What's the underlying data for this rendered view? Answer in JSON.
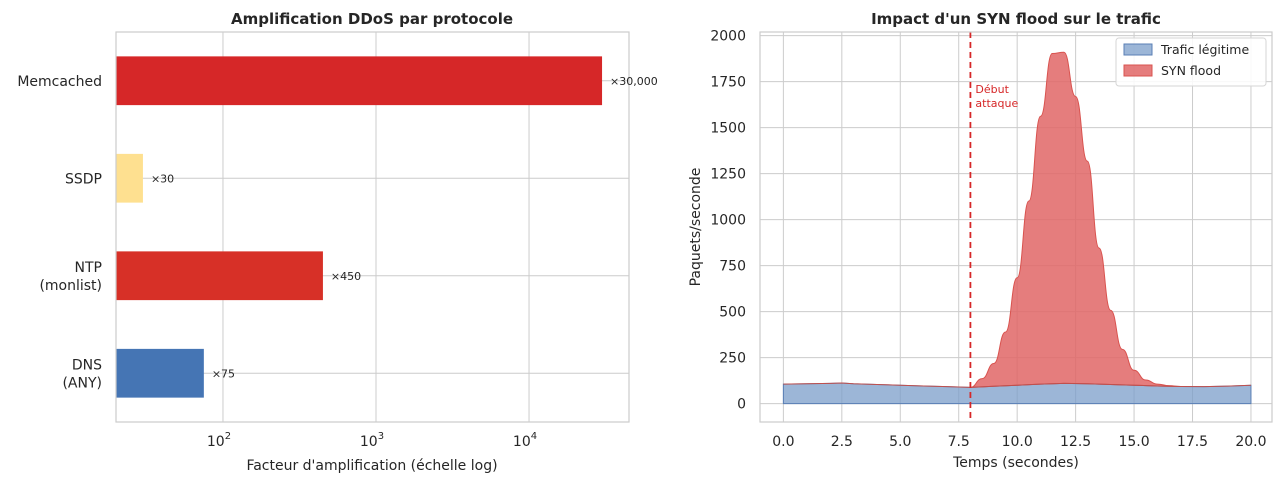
{
  "chart_data": [
    {
      "type": "bar",
      "orientation": "horizontal",
      "title": "Amplification DDoS par protocole",
      "xlabel": "Facteur d'amplification (échelle log)",
      "ylabel": "",
      "xscale": "log",
      "xlim": [
        20,
        45000
      ],
      "xticks": [
        {
          "base": "10",
          "exp": "2"
        },
        {
          "base": "10",
          "exp": "3"
        },
        {
          "base": "10",
          "exp": "4"
        }
      ],
      "grid": true,
      "categories": [
        "DNS|(ANY)",
        "NTP|(monlist)",
        "SSDP",
        "Memcached"
      ],
      "values": [
        75,
        450,
        30,
        30000
      ],
      "labels": [
        "×75",
        "×450",
        "×30",
        "×30,000"
      ],
      "colors": [
        "#4575b4",
        "#d73027",
        "#fee090",
        "#d62728"
      ]
    },
    {
      "type": "area",
      "title": "Impact d'un SYN flood sur le trafic",
      "xlabel": "Temps (secondes)",
      "ylabel": "Paquets/seconde",
      "xlim": [
        -1,
        20.9
      ],
      "ylim": [
        -100,
        2020
      ],
      "xticks": [
        "0.0",
        "2.5",
        "5.0",
        "7.5",
        "10.0",
        "12.5",
        "15.0",
        "17.5",
        "20.0"
      ],
      "yticks": [
        "0",
        "250",
        "500",
        "750",
        "1000",
        "1250",
        "1500",
        "1750",
        "2000"
      ],
      "grid": true,
      "legend_position": "top-right",
      "series": [
        {
          "name": "Trafic légitime",
          "color": "#7b9dc9",
          "x": [
            0,
            1,
            2,
            2.5,
            3,
            4,
            5,
            6,
            7,
            8,
            9,
            10,
            11,
            12,
            13,
            14,
            15,
            16,
            17,
            18,
            19,
            20
          ],
          "y": [
            106,
            108,
            110,
            112,
            108,
            104,
            100,
            96,
            92,
            88,
            94,
            100,
            106,
            110,
            108,
            104,
            100,
            96,
            93,
            92,
            95,
            100
          ]
        },
        {
          "name": "SYN flood",
          "color": "#e06666",
          "x": [
            8.0,
            8.5,
            9.0,
            9.5,
            10.0,
            10.5,
            11.0,
            11.5,
            12.0,
            12.5,
            13.0,
            13.5,
            14.0,
            14.5,
            15.0,
            15.5,
            16.0,
            16.5,
            17.0
          ],
          "y": [
            0,
            45,
            124,
            292,
            584,
            998,
            1456,
            1795,
            1800,
            1560,
            1210,
            740,
            403,
            193,
            81,
            30,
            10,
            3,
            0
          ]
        }
      ],
      "annotation": {
        "x": 8,
        "text": "Début|attaque",
        "color": "#d62728"
      }
    }
  ]
}
